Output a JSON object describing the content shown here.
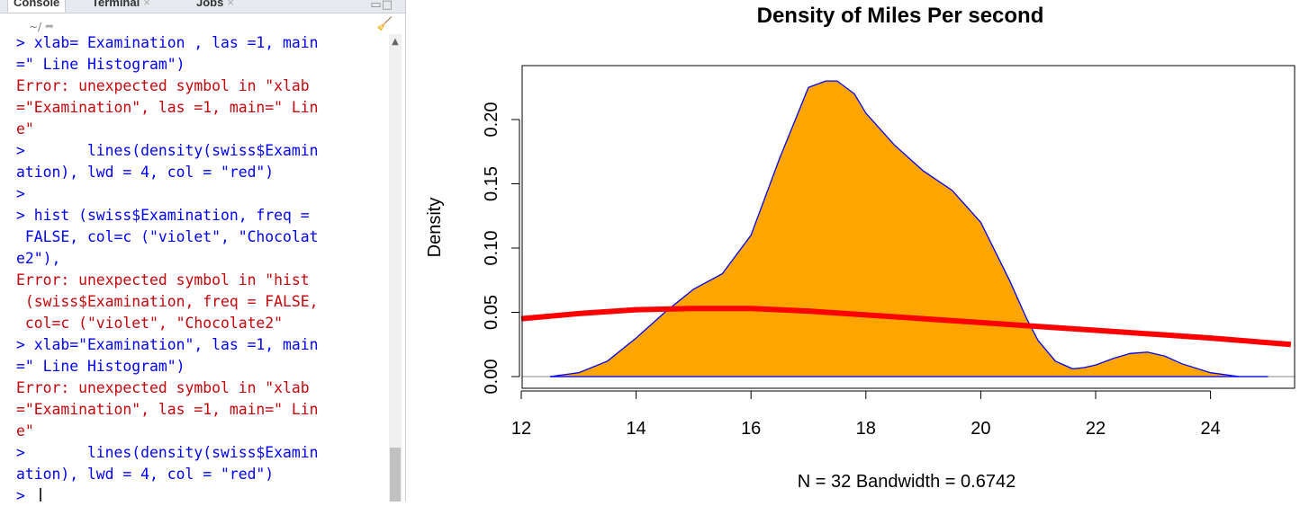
{
  "console": {
    "tabs": [
      {
        "label": "Console"
      },
      {
        "label": "Terminal"
      },
      {
        "label": "Jobs"
      }
    ],
    "path": "~/",
    "lines": [
      {
        "text": "> xlab= Examination , las =1, main",
        "kind": "cmd"
      },
      {
        "text": "=\" Line Histogram\")",
        "kind": "cmd"
      },
      {
        "text": "Error: unexpected symbol in \"xlab",
        "kind": "err"
      },
      {
        "text": "=\"Examination\", las =1, main=\" Lin",
        "kind": "err"
      },
      {
        "text": "e\"",
        "kind": "err"
      },
      {
        "text": ">       lines(density(swiss$Examin",
        "kind": "cmd"
      },
      {
        "text": "ation), lwd = 4, col = \"red\")",
        "kind": "cmd"
      },
      {
        "text": ">",
        "kind": "cmd"
      },
      {
        "text": "> hist (swiss$Examination, freq =",
        "kind": "cmd"
      },
      {
        "text": " FALSE, col=c (\"violet\", \"Chocolat",
        "kind": "cmd"
      },
      {
        "text": "e2\"),",
        "kind": "cmd"
      },
      {
        "text": "Error: unexpected symbol in \"hist",
        "kind": "err"
      },
      {
        "text": " (swiss$Examination, freq = FALSE,",
        "kind": "err"
      },
      {
        "text": " col=c (\"violet\", \"Chocolate2\"",
        "kind": "err"
      },
      {
        "text": "> xlab=\"Examination\", las =1, main",
        "kind": "cmd"
      },
      {
        "text": "=\" Line Histogram\")",
        "kind": "cmd"
      },
      {
        "text": "Error: unexpected symbol in \"xlab",
        "kind": "err"
      },
      {
        "text": "=\"Examination\", las =1, main=\" Lin",
        "kind": "err"
      },
      {
        "text": "e\"",
        "kind": "err"
      },
      {
        "text": ">       lines(density(swiss$Examin",
        "kind": "cmd"
      },
      {
        "text": "ation), lwd = 4, col = \"red\")",
        "kind": "cmd"
      },
      {
        "text": ">",
        "kind": "cmd"
      }
    ],
    "colors": {
      "command": "#0000ff",
      "error": "#c5060b"
    }
  },
  "chart_data": {
    "type": "area",
    "title": "Density of Miles Per second",
    "xlabel": "N = 32   Bandwidth = 0.6742",
    "ylabel": "Density",
    "xlim": [
      12,
      25.4
    ],
    "ylim": [
      0,
      0.232
    ],
    "x_ticks": [
      "12",
      "14",
      "16",
      "18",
      "20",
      "22",
      "24"
    ],
    "y_ticks": [
      "0.00",
      "0.05",
      "0.10",
      "0.15",
      "0.20"
    ],
    "grid": false,
    "series": [
      {
        "fill": "#FFA500",
        "stroke": "#0000ff",
        "x": [
          12.5,
          13.0,
          13.5,
          14.0,
          14.5,
          15.0,
          15.5,
          16.0,
          16.5,
          17.0,
          17.3,
          17.5,
          17.8,
          18.0,
          18.5,
          19.0,
          19.5,
          20.0,
          20.5,
          20.8,
          21.0,
          21.3,
          21.6,
          21.8,
          22.0,
          22.3,
          22.6,
          22.9,
          23.2,
          23.5,
          24.0,
          24.5,
          25.0
        ],
        "y": [
          0.0,
          0.003,
          0.012,
          0.03,
          0.05,
          0.068,
          0.08,
          0.11,
          0.17,
          0.225,
          0.23,
          0.23,
          0.22,
          0.205,
          0.18,
          0.16,
          0.145,
          0.12,
          0.075,
          0.045,
          0.028,
          0.012,
          0.006,
          0.007,
          0.009,
          0.014,
          0.018,
          0.019,
          0.016,
          0.01,
          0.003,
          0.0,
          0.0
        ]
      },
      {
        "stroke": "#ff0000",
        "x": [
          12.0,
          13.0,
          14.0,
          15.0,
          16.0,
          17.0,
          18.0,
          19.0,
          20.0,
          21.0,
          22.0,
          23.0,
          24.0,
          25.4
        ],
        "y": [
          0.045,
          0.049,
          0.052,
          0.053,
          0.053,
          0.051,
          0.048,
          0.045,
          0.042,
          0.039,
          0.036,
          0.033,
          0.03,
          0.025
        ]
      }
    ]
  }
}
